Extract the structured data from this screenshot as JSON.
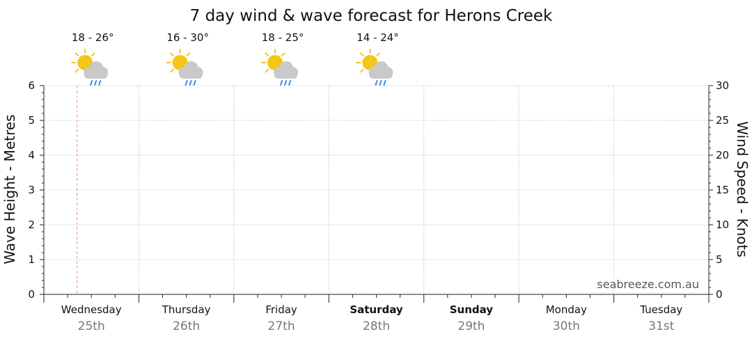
{
  "chart_data": {
    "type": "line",
    "title": "7 day wind & wave forecast for Herons Creek",
    "ylabel_left": "Wave Height - Metres",
    "ylabel_right": "Wind Speed - Knots",
    "ylim_left": [
      0,
      6
    ],
    "yticks_left": [
      "0",
      "1",
      "2",
      "3",
      "4",
      "5",
      "6"
    ],
    "ylim_right": [
      0,
      30
    ],
    "yticks_right": [
      "0",
      "5",
      "10",
      "15",
      "20",
      "25",
      "30"
    ],
    "grid": true,
    "watermark": "seabreeze.com.au",
    "now_marker_day_fraction": 0.35,
    "days": [
      {
        "day": "Wednesday",
        "date": "25th",
        "bold": false,
        "temp": "18 - 26°",
        "icon": "sun-cloud-rain-icon"
      },
      {
        "day": "Thursday",
        "date": "26th",
        "bold": false,
        "temp": "16 - 30°",
        "icon": "sun-cloud-rain-icon"
      },
      {
        "day": "Friday",
        "date": "27th",
        "bold": false,
        "temp": "18 - 25°",
        "icon": "sun-cloud-rain-icon"
      },
      {
        "day": "Saturday",
        "date": "28th",
        "bold": true,
        "temp": "14 - 24°",
        "icon": "sun-cloud-rain-icon"
      },
      {
        "day": "Sunday",
        "date": "29th",
        "bold": true,
        "temp": "",
        "icon": ""
      },
      {
        "day": "Monday",
        "date": "30th",
        "bold": false,
        "temp": "",
        "icon": ""
      },
      {
        "day": "Tuesday",
        "date": "31st",
        "bold": false,
        "temp": "",
        "icon": ""
      }
    ],
    "series": []
  },
  "colors": {
    "grid": "#9a9a9a",
    "axis": "#222222",
    "now_marker": "#f2a0a0",
    "date_text": "#777777",
    "watermark": "#555555",
    "sun": "#f5c518",
    "cloud": "#c9c9c9",
    "rain": "#3a8ee6"
  }
}
